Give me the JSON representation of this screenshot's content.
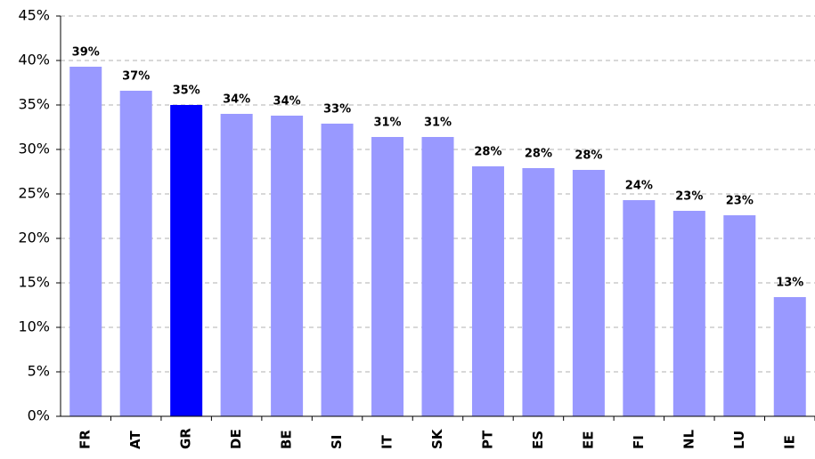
{
  "chart_data": {
    "type": "bar",
    "categories": [
      "FR",
      "AT",
      "GR",
      "DE",
      "BE",
      "SI",
      "IT",
      "SK",
      "PT",
      "ES",
      "EE",
      "FI",
      "NL",
      "LU",
      "IE"
    ],
    "values": [
      39.3,
      36.6,
      35.0,
      34.0,
      33.8,
      32.9,
      31.4,
      31.4,
      28.1,
      27.9,
      27.7,
      24.3,
      23.1,
      22.6,
      13.4
    ],
    "value_labels": [
      "39%",
      "37%",
      "35%",
      "34%",
      "34%",
      "33%",
      "31%",
      "31%",
      "28%",
      "28%",
      "28%",
      "24%",
      "23%",
      "23%",
      "13%"
    ],
    "colors": [
      "#9999ff",
      "#9999ff",
      "#0000ff",
      "#9999ff",
      "#9999ff",
      "#9999ff",
      "#9999ff",
      "#9999ff",
      "#9999ff",
      "#9999ff",
      "#9999ff",
      "#9999ff",
      "#9999ff",
      "#9999ff",
      "#9999ff"
    ],
    "ylim": [
      0,
      45
    ],
    "yticks": [
      {
        "value": 0,
        "label": "0%"
      },
      {
        "value": 5,
        "label": "5%"
      },
      {
        "value": 10,
        "label": "10%"
      },
      {
        "value": 15,
        "label": "15%"
      },
      {
        "value": 20,
        "label": "20%"
      },
      {
        "value": 25,
        "label": "25%"
      },
      {
        "value": 30,
        "label": "30%"
      },
      {
        "value": 35,
        "label": "35%"
      },
      {
        "value": 40,
        "label": "40%"
      },
      {
        "value": 45,
        "label": "45%"
      }
    ],
    "grid": true
  }
}
